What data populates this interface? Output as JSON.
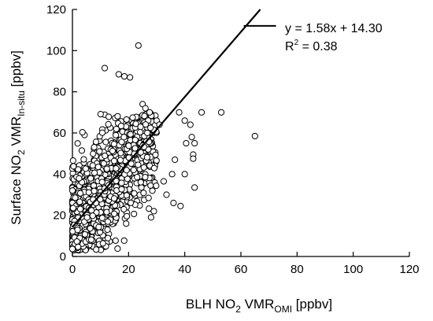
{
  "chart_data": {
    "type": "scatter",
    "title": "",
    "xlabel": {
      "prefix": "BLH NO",
      "prefix_sub": "2",
      "middle": " VMR",
      "sub": "OMI",
      "suffix": " [ppbv]"
    },
    "ylabel": {
      "prefix": "Surface NO",
      "prefix_sub": "2",
      "middle": " VMR",
      "sub": "In-situ",
      "suffix": " [ppbv]"
    },
    "xlim": [
      0,
      120
    ],
    "ylim": [
      0,
      120
    ],
    "x_ticks": [
      "0",
      "20",
      "40",
      "60",
      "80",
      "100",
      "120"
    ],
    "y_ticks": [
      "0",
      "20",
      "40",
      "60",
      "80",
      "100",
      "120"
    ],
    "grid": false,
    "regression": {
      "slope": 1.58,
      "intercept": 14.3,
      "equation_text": "y = 1.58x + 14.30",
      "r2_prefix": "R",
      "r2_sup": "2",
      "r2_suffix": " = 0.38"
    },
    "outliers": [
      [
        23.5,
        102.5
      ],
      [
        11.5,
        91.5
      ],
      [
        16.5,
        88.5
      ],
      [
        18.5,
        87.5
      ],
      [
        20.5,
        87
      ],
      [
        25,
        74
      ],
      [
        26,
        72
      ],
      [
        27.5,
        70
      ],
      [
        30,
        66
      ],
      [
        31,
        64
      ],
      [
        38,
        70
      ],
      [
        40,
        66
      ],
      [
        42,
        64
      ],
      [
        46,
        70
      ],
      [
        53,
        70
      ],
      [
        65,
        58.5
      ],
      [
        42.5,
        58
      ],
      [
        43.5,
        55
      ],
      [
        40.5,
        55
      ],
      [
        36.5,
        47
      ],
      [
        43,
        49.5
      ],
      [
        43,
        47.5
      ],
      [
        35.5,
        40
      ],
      [
        40,
        40
      ],
      [
        32.5,
        36.5
      ],
      [
        36,
        26
      ],
      [
        38.5,
        24.5
      ],
      [
        43.5,
        33.5
      ],
      [
        33.5,
        30
      ],
      [
        29,
        22
      ],
      [
        28,
        19
      ]
    ],
    "cloud": {
      "count": 1300,
      "seed": 12345,
      "x_range": [
        0,
        30
      ],
      "y_floor": 3,
      "y_ceiling": 70,
      "noise_sd": 13
    }
  }
}
